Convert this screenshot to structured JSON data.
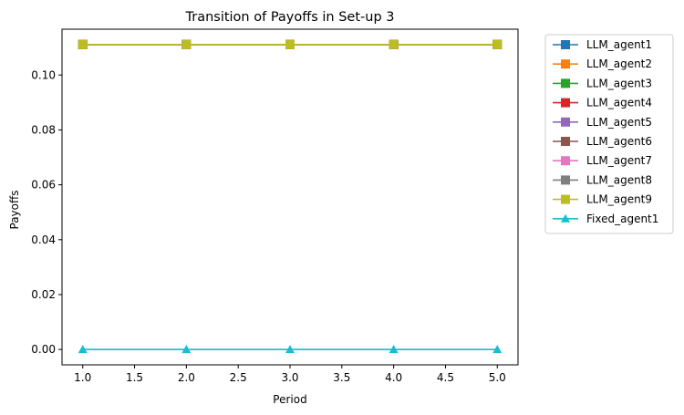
{
  "chart_data": {
    "type": "line",
    "title": "Transition of Payoffs in Set-up 3",
    "xlabel": "Period",
    "ylabel": "Payoffs",
    "x": [
      1,
      2,
      3,
      4,
      5
    ],
    "xlim": [
      0.8,
      5.2
    ],
    "ylim": [
      -0.0056,
      0.1167
    ],
    "xticks": [
      "1.0",
      "1.5",
      "2.0",
      "2.5",
      "3.0",
      "3.5",
      "4.0",
      "4.5",
      "5.0"
    ],
    "yticks": [
      "0.00",
      "0.02",
      "0.04",
      "0.06",
      "0.08",
      "0.10"
    ],
    "grid": false,
    "legend_position": "outside right, top",
    "series": [
      {
        "name": "LLM_agent1",
        "color": "#1f77b4",
        "marker": "square",
        "values": [
          0.1111,
          0.1111,
          0.1111,
          0.1111,
          0.1111
        ]
      },
      {
        "name": "LLM_agent2",
        "color": "#ff7f0e",
        "marker": "square",
        "values": [
          0.1111,
          0.1111,
          0.1111,
          0.1111,
          0.1111
        ]
      },
      {
        "name": "LLM_agent3",
        "color": "#2ca02c",
        "marker": "square",
        "values": [
          0.1111,
          0.1111,
          0.1111,
          0.1111,
          0.1111
        ]
      },
      {
        "name": "LLM_agent4",
        "color": "#d62728",
        "marker": "square",
        "values": [
          0.1111,
          0.1111,
          0.1111,
          0.1111,
          0.1111
        ]
      },
      {
        "name": "LLM_agent5",
        "color": "#9467bd",
        "marker": "square",
        "values": [
          0.1111,
          0.1111,
          0.1111,
          0.1111,
          0.1111
        ]
      },
      {
        "name": "LLM_agent6",
        "color": "#8c564b",
        "marker": "square",
        "values": [
          0.1111,
          0.1111,
          0.1111,
          0.1111,
          0.1111
        ]
      },
      {
        "name": "LLM_agent7",
        "color": "#e377c2",
        "marker": "square",
        "values": [
          0.1111,
          0.1111,
          0.1111,
          0.1111,
          0.1111
        ]
      },
      {
        "name": "LLM_agent8",
        "color": "#7f7f7f",
        "marker": "square",
        "values": [
          0.1111,
          0.1111,
          0.1111,
          0.1111,
          0.1111
        ]
      },
      {
        "name": "LLM_agent9",
        "color": "#bcbd22",
        "marker": "square",
        "values": [
          0.1111,
          0.1111,
          0.1111,
          0.1111,
          0.1111
        ]
      },
      {
        "name": "Fixed_agent1",
        "color": "#17becf",
        "marker": "triangle",
        "values": [
          0,
          0,
          0,
          0,
          0
        ]
      }
    ]
  }
}
